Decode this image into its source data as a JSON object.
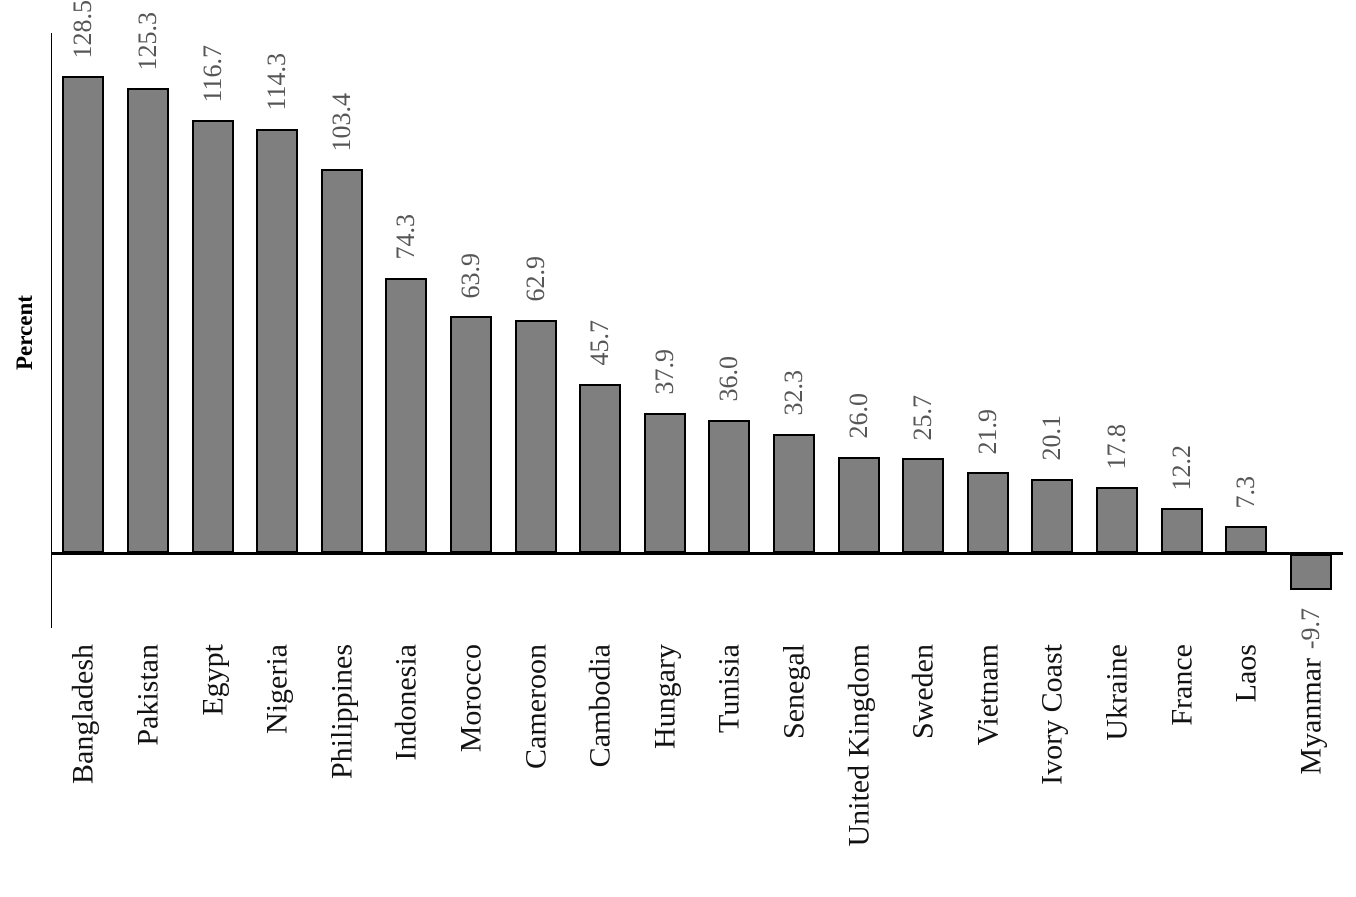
{
  "chart_data": {
    "type": "bar",
    "title": "",
    "xlabel": "",
    "ylabel": "Percent",
    "categories": [
      "Bangladesh",
      "Pakistan",
      "Egypt",
      "Nigeria",
      "Philippines",
      "Indonesia",
      "Morocco",
      "Cameroon",
      "Cambodia",
      "Hungary",
      "Tunisia",
      "Senegal",
      "United Kingdom",
      "Sweden",
      "Vietnam",
      "Ivory Coast",
      "Ukraine",
      "France",
      "Laos",
      "Myanmar"
    ],
    "values": [
      128.5,
      125.3,
      116.7,
      114.3,
      103.4,
      74.3,
      63.9,
      62.9,
      45.7,
      37.9,
      36.0,
      32.3,
      26.0,
      25.7,
      21.9,
      20.1,
      17.8,
      12.2,
      7.3,
      -9.7
    ],
    "value_labels": [
      "128.5",
      "125.3",
      "116.7",
      "114.3",
      "103.4",
      "74.3",
      "63.9",
      "62.9",
      "45.7",
      "37.9",
      "36.0",
      "32.3",
      "26.0",
      "25.7",
      "21.9",
      "20.1",
      "17.8",
      "12.2",
      "7.3",
      "-9.7"
    ],
    "ylim": [
      -20,
      140
    ],
    "grid": false,
    "legend": false,
    "axis_ticks": "none",
    "label_rotation_degrees": 90,
    "bar_color": "#7f7f7f",
    "bar_border_color": "#000000",
    "value_label_color": "#565656",
    "category_label_color": "#121212",
    "axis_color": "#000000"
  }
}
